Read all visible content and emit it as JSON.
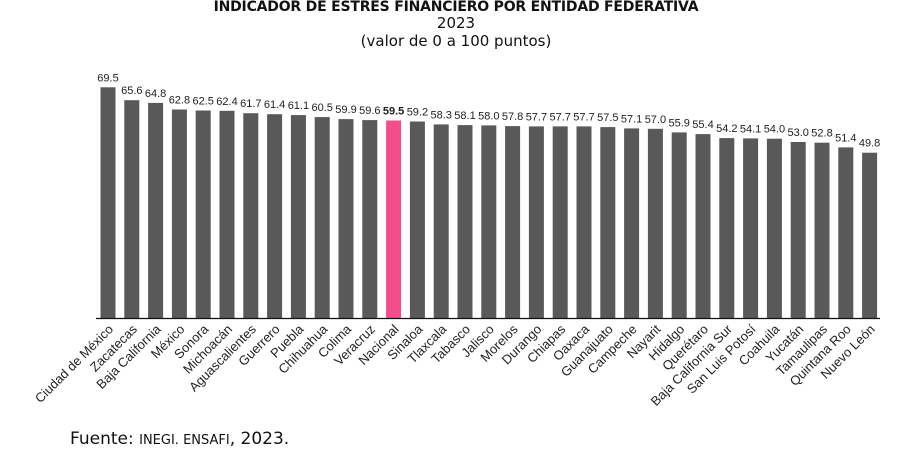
{
  "chart_data": {
    "type": "bar",
    "title": "INDICADOR DE ESTRÉS FINANCIERO POR ENTIDAD FEDERATIVA",
    "subtitle": "2023",
    "subtitle2": "(valor de 0 a 100 puntos)",
    "xlabel": "",
    "ylabel": "",
    "ylim": [
      0,
      100
    ],
    "grid": false,
    "legend": "none",
    "highlight_category": "Nacional",
    "colors": {
      "default": "#595959",
      "highlight": "#f24e8d",
      "axis": "#111111",
      "label": "#222222"
    },
    "categories": [
      "Ciudad de México",
      "Zacatecas",
      "Baja California",
      "México",
      "Sonora",
      "Michoacán",
      "Aguascalientes",
      "Guerrero",
      "Puebla",
      "Chihuahua",
      "Colima",
      "Veracruz",
      "Nacional",
      "Sinaloa",
      "Tlaxcala",
      "Tabasco",
      "Jalisco",
      "Morelos",
      "Durango",
      "Chiapas",
      "Oaxaca",
      "Guanajuato",
      "Campeche",
      "Nayarit",
      "Hidalgo",
      "Querétaro",
      "Baja California Sur",
      "San Luis Potosí",
      "Coahuila",
      "Yucatán",
      "Tamaulipas",
      "Quintana Roo",
      "Nuevo León"
    ],
    "values": [
      69.5,
      65.6,
      64.8,
      62.8,
      62.5,
      62.4,
      61.7,
      61.4,
      61.1,
      60.5,
      59.9,
      59.6,
      59.5,
      59.2,
      58.3,
      58.1,
      58.0,
      57.8,
      57.7,
      57.7,
      57.7,
      57.5,
      57.1,
      57.0,
      55.9,
      55.4,
      54.2,
      54.1,
      54.0,
      53.0,
      52.8,
      51.4,
      49.8
    ],
    "labels": [
      "69.5",
      "65.6",
      "64.8",
      "62.8",
      "62.5",
      "62.4",
      "61.7",
      "61.4",
      "61.1",
      "60.5",
      "59.9",
      "59.6",
      "59.5",
      "59.2",
      "58.3",
      "58.1",
      "58.0",
      "57.8",
      "57.7",
      "57.7",
      "57.7",
      "57.5",
      "57.1",
      "57.0",
      "55.9",
      "55.4",
      "54.2",
      "54.1",
      "54.0",
      "53.0",
      "52.8",
      "51.4",
      "49.8"
    ]
  },
  "source": {
    "prefix": "Fuente: ",
    "org": "INEGI. ENSAFI",
    "suffix": ", 2023."
  }
}
